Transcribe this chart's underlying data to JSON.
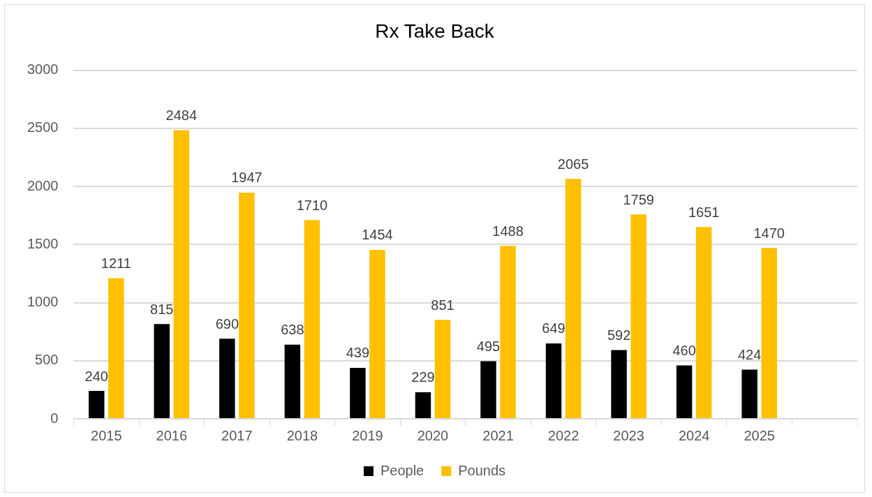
{
  "chart_data": {
    "type": "bar",
    "title": "Rx Take Back",
    "categories": [
      "2015",
      "2016",
      "2017",
      "2018",
      "2019",
      "2020",
      "2021",
      "2022",
      "2023",
      "2024",
      "2025",
      null
    ],
    "series": [
      {
        "name": "People",
        "color": "#000000",
        "values": [
          240,
          815,
          690,
          638,
          439,
          229,
          495,
          649,
          592,
          460,
          424,
          null
        ]
      },
      {
        "name": "Pounds",
        "color": "#ffc000",
        "values": [
          1211,
          2484,
          1947,
          1710,
          1454,
          851,
          1488,
          2065,
          1759,
          1651,
          1470,
          null
        ]
      }
    ],
    "ylim": [
      0,
      3000
    ],
    "yticks": [
      0,
      500,
      1000,
      1500,
      2000,
      2500,
      3000
    ],
    "grid": "y",
    "legend": "bottom",
    "data_labels": true
  }
}
